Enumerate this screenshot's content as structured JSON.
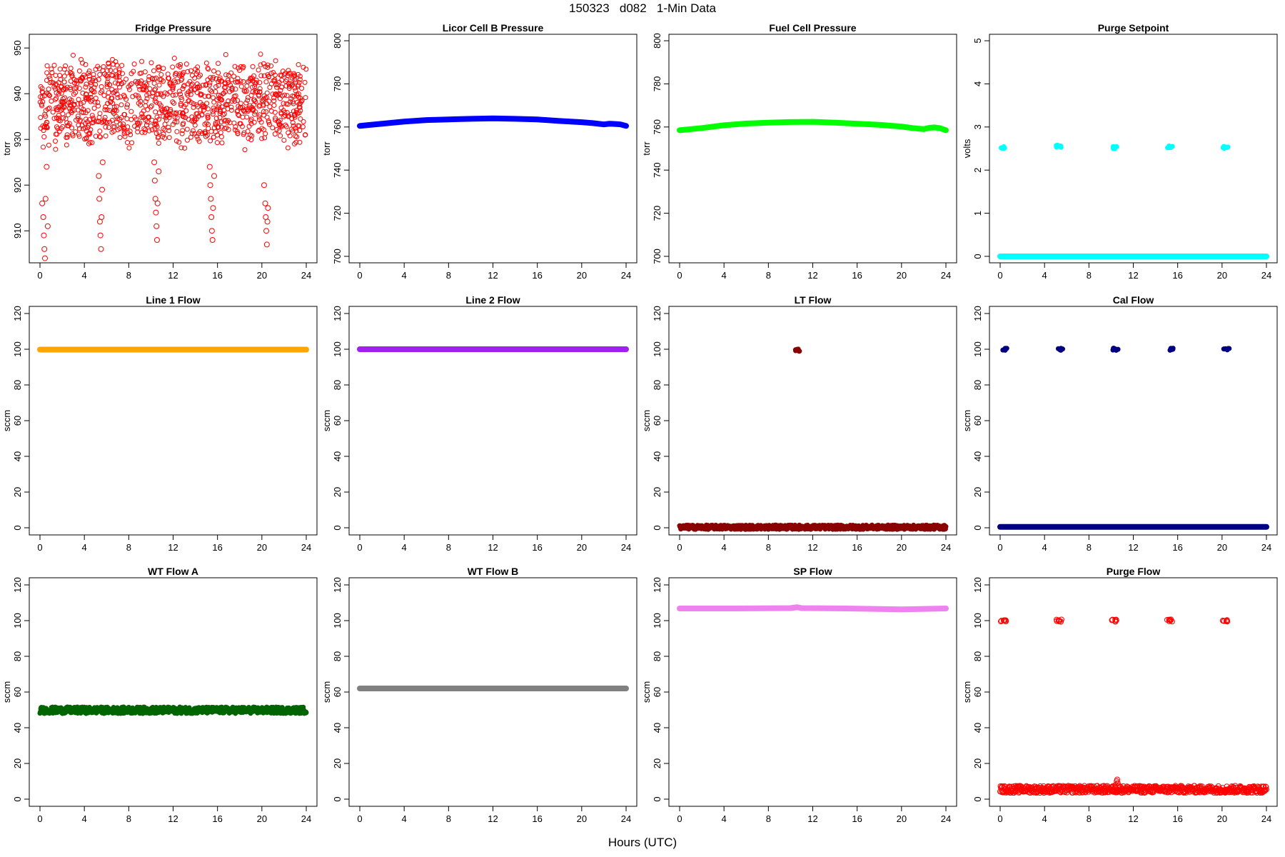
{
  "page": {
    "title": "150323   d082   1-Min Data",
    "x_title": "Hours (UTC)"
  },
  "chart_data": [
    {
      "type": "scatter",
      "title": "Fridge Pressure",
      "ylabel": "torr",
      "color": "#ff0000",
      "hollow": true,
      "xlim": [
        0,
        24
      ],
      "xticks": [
        0,
        4,
        8,
        12,
        16,
        20,
        24
      ],
      "ylim": [
        903,
        953
      ],
      "yticks": [
        910,
        920,
        930,
        940,
        950
      ],
      "series": [
        {
          "kind": "noise",
          "center": 938,
          "spread": 7,
          "count": 1100
        },
        {
          "kind": "points",
          "points": [
            [
              0.2,
              916
            ],
            [
              0.3,
              913
            ],
            [
              0.35,
              909
            ],
            [
              0.4,
              906
            ],
            [
              0.45,
              904
            ],
            [
              0.5,
              917
            ],
            [
              0.6,
              924
            ],
            [
              0.7,
              911
            ],
            [
              5.3,
              922
            ],
            [
              5.35,
              917
            ],
            [
              5.4,
              912
            ],
            [
              5.45,
              909
            ],
            [
              5.5,
              906
            ],
            [
              5.55,
              913
            ],
            [
              5.6,
              919
            ],
            [
              5.65,
              925
            ],
            [
              10.3,
              925
            ],
            [
              10.35,
              921
            ],
            [
              10.4,
              917
            ],
            [
              10.45,
              914
            ],
            [
              10.5,
              911
            ],
            [
              10.55,
              908
            ],
            [
              10.6,
              916
            ],
            [
              10.7,
              923
            ],
            [
              15.3,
              924
            ],
            [
              15.35,
              920
            ],
            [
              15.4,
              917
            ],
            [
              15.45,
              913
            ],
            [
              15.5,
              910
            ],
            [
              15.55,
              908
            ],
            [
              15.6,
              915
            ],
            [
              15.7,
              922
            ],
            [
              20.2,
              920
            ],
            [
              20.3,
              916
            ],
            [
              20.35,
              913
            ],
            [
              20.4,
              910
            ],
            [
              20.45,
              907
            ],
            [
              20.5,
              912
            ],
            [
              20.55,
              915
            ]
          ]
        }
      ]
    },
    {
      "type": "line",
      "title": "Licor Cell B Pressure",
      "ylabel": "torr",
      "color": "#0000ff",
      "xlim": [
        0,
        24
      ],
      "xticks": [
        0,
        4,
        8,
        12,
        16,
        20,
        24
      ],
      "ylim": [
        697,
        803
      ],
      "yticks": [
        700,
        720,
        740,
        760,
        780,
        800
      ],
      "series": [
        {
          "kind": "line",
          "points": [
            [
              0,
              760.5
            ],
            [
              2,
              761.5
            ],
            [
              4,
              762.5
            ],
            [
              6,
              763.2
            ],
            [
              8,
              763.5
            ],
            [
              10,
              763.8
            ],
            [
              12,
              764
            ],
            [
              14,
              763.8
            ],
            [
              16,
              763.5
            ],
            [
              18,
              762.8
            ],
            [
              20,
              762.2
            ],
            [
              21,
              761.8
            ],
            [
              22,
              761.2
            ],
            [
              22.5,
              761.5
            ],
            [
              23,
              761.4
            ],
            [
              23.5,
              761.2
            ],
            [
              24,
              760.5
            ]
          ]
        }
      ]
    },
    {
      "type": "line",
      "title": "Fuel Cell Pressure",
      "ylabel": "torr",
      "color": "#00ff00",
      "xlim": [
        0,
        24
      ],
      "xticks": [
        0,
        4,
        8,
        12,
        16,
        20,
        24
      ],
      "ylim": [
        697,
        803
      ],
      "yticks": [
        700,
        720,
        740,
        760,
        780,
        800
      ],
      "series": [
        {
          "kind": "line",
          "points": [
            [
              0,
              758.5
            ],
            [
              2,
              759.5
            ],
            [
              4,
              760.8
            ],
            [
              6,
              761.6
            ],
            [
              8,
              762
            ],
            [
              10,
              762.3
            ],
            [
              12,
              762.4
            ],
            [
              14,
              762
            ],
            [
              16,
              761.5
            ],
            [
              18,
              761
            ],
            [
              20,
              760.2
            ],
            [
              21,
              759.5
            ],
            [
              22,
              759
            ],
            [
              22.5,
              759.6
            ],
            [
              23,
              759.8
            ],
            [
              23.5,
              759.4
            ],
            [
              24,
              758.5
            ]
          ]
        }
      ]
    },
    {
      "type": "scatter",
      "title": "Purge Setpoint",
      "ylabel": "volts",
      "color": "#00ffff",
      "xlim": [
        0,
        24
      ],
      "xticks": [
        0,
        4,
        8,
        12,
        16,
        20,
        24
      ],
      "ylim": [
        -0.15,
        5.15
      ],
      "yticks": [
        0,
        1,
        2,
        3,
        4,
        5
      ],
      "series": [
        {
          "kind": "line",
          "points": [
            [
              0,
              0
            ],
            [
              24,
              0
            ]
          ]
        },
        {
          "kind": "cluster",
          "x": 0.3,
          "y": 2.52
        },
        {
          "kind": "cluster",
          "x": 5.3,
          "y": 2.55
        },
        {
          "kind": "cluster",
          "x": 10.3,
          "y": 2.52
        },
        {
          "kind": "cluster",
          "x": 15.3,
          "y": 2.54
        },
        {
          "kind": "cluster",
          "x": 20.3,
          "y": 2.53
        }
      ]
    },
    {
      "type": "line",
      "title": "Line 1 Flow",
      "ylabel": "sccm",
      "color": "#ffa500",
      "xlim": [
        0,
        24
      ],
      "xticks": [
        0,
        4,
        8,
        12,
        16,
        20,
        24
      ],
      "ylim": [
        -4,
        124
      ],
      "yticks": [
        0,
        20,
        40,
        60,
        80,
        100,
        120
      ],
      "series": [
        {
          "kind": "line",
          "points": [
            [
              0,
              99.8
            ],
            [
              24,
              99.8
            ]
          ]
        }
      ]
    },
    {
      "type": "line",
      "title": "Line 2 Flow",
      "ylabel": "sccm",
      "color": "#a020f0",
      "xlim": [
        0,
        24
      ],
      "xticks": [
        0,
        4,
        8,
        12,
        16,
        20,
        24
      ],
      "ylim": [
        -4,
        124
      ],
      "yticks": [
        0,
        20,
        40,
        60,
        80,
        100,
        120
      ],
      "series": [
        {
          "kind": "line",
          "points": [
            [
              0,
              100
            ],
            [
              24,
              100
            ]
          ]
        }
      ]
    },
    {
      "type": "scatter",
      "title": "LT Flow",
      "ylabel": "sccm",
      "color": "#8b0000",
      "xlim": [
        0,
        24
      ],
      "xticks": [
        0,
        4,
        8,
        12,
        16,
        20,
        24
      ],
      "ylim": [
        -4,
        124
      ],
      "yticks": [
        0,
        20,
        40,
        60,
        80,
        100,
        120
      ],
      "series": [
        {
          "kind": "band",
          "center": 0.3,
          "spread": 1.2
        },
        {
          "kind": "cluster",
          "x": 10.6,
          "y": 99.5
        }
      ]
    },
    {
      "type": "scatter",
      "title": "Cal Flow",
      "ylabel": "sccm",
      "color": "#000080",
      "xlim": [
        0,
        24
      ],
      "xticks": [
        0,
        4,
        8,
        12,
        16,
        20,
        24
      ],
      "ylim": [
        -4,
        124
      ],
      "yticks": [
        0,
        20,
        40,
        60,
        80,
        100,
        120
      ],
      "series": [
        {
          "kind": "line",
          "points": [
            [
              0,
              0.5
            ],
            [
              24,
              0.5
            ]
          ]
        },
        {
          "kind": "cluster",
          "x": 0.4,
          "y": 100
        },
        {
          "kind": "cluster",
          "x": 5.4,
          "y": 100
        },
        {
          "kind": "cluster",
          "x": 10.4,
          "y": 100
        },
        {
          "kind": "cluster",
          "x": 15.4,
          "y": 100
        },
        {
          "kind": "cluster",
          "x": 20.4,
          "y": 100
        }
      ]
    },
    {
      "type": "scatter",
      "title": "WT Flow A",
      "ylabel": "sccm",
      "color": "#006400",
      "xlim": [
        0,
        24
      ],
      "xticks": [
        0,
        4,
        8,
        12,
        16,
        20,
        24
      ],
      "ylim": [
        -4,
        124
      ],
      "yticks": [
        0,
        20,
        40,
        60,
        80,
        100,
        120
      ],
      "series": [
        {
          "kind": "band",
          "center": 49.8,
          "spread": 1.8
        }
      ]
    },
    {
      "type": "line",
      "title": "WT Flow B",
      "ylabel": "sccm",
      "color": "#808080",
      "xlim": [
        0,
        24
      ],
      "xticks": [
        0,
        4,
        8,
        12,
        16,
        20,
        24
      ],
      "ylim": [
        -4,
        124
      ],
      "yticks": [
        0,
        20,
        40,
        60,
        80,
        100,
        120
      ],
      "series": [
        {
          "kind": "line",
          "points": [
            [
              0,
              62
            ],
            [
              24,
              62
            ]
          ]
        }
      ]
    },
    {
      "type": "line",
      "title": "SP Flow",
      "ylabel": "sccm",
      "color": "#ee82ee",
      "xlim": [
        0,
        24
      ],
      "xticks": [
        0,
        4,
        8,
        12,
        16,
        20,
        24
      ],
      "ylim": [
        -4,
        124
      ],
      "yticks": [
        0,
        20,
        40,
        60,
        80,
        100,
        120
      ],
      "series": [
        {
          "kind": "line",
          "points": [
            [
              0,
              106.8
            ],
            [
              5,
              106.8
            ],
            [
              10,
              107
            ],
            [
              10.6,
              107.5
            ],
            [
              11,
              107
            ],
            [
              15,
              106.8
            ],
            [
              20,
              106.3
            ],
            [
              24,
              106.8
            ]
          ]
        }
      ]
    },
    {
      "type": "scatter",
      "title": "Purge Flow",
      "ylabel": "sccm",
      "color": "#ff0000",
      "hollow": true,
      "xlim": [
        0,
        24
      ],
      "xticks": [
        0,
        4,
        8,
        12,
        16,
        20,
        24
      ],
      "ylim": [
        -4,
        124
      ],
      "yticks": [
        0,
        20,
        40,
        60,
        80,
        100,
        120
      ],
      "series": [
        {
          "kind": "band",
          "center": 5.5,
          "spread": 2.0
        },
        {
          "kind": "points",
          "points": [
            [
              10.4,
              8
            ],
            [
              10.5,
              10
            ],
            [
              10.55,
              11
            ],
            [
              10.6,
              9
            ],
            [
              10.7,
              7.5
            ]
          ]
        },
        {
          "kind": "cluster",
          "x": 0.3,
          "y": 100
        },
        {
          "kind": "cluster",
          "x": 5.3,
          "y": 100
        },
        {
          "kind": "cluster",
          "x": 10.3,
          "y": 100
        },
        {
          "kind": "cluster",
          "x": 15.3,
          "y": 100
        },
        {
          "kind": "cluster",
          "x": 20.3,
          "y": 100
        }
      ]
    }
  ]
}
